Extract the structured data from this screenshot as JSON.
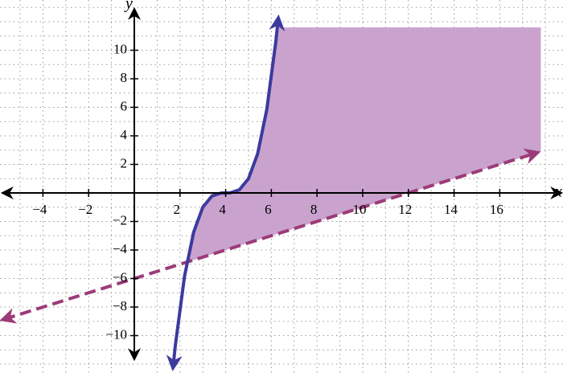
{
  "chart_data": {
    "type": "function-plot",
    "x_label": "x",
    "y_label": "y",
    "xlim": [
      -5.88,
      18.77
    ],
    "ylim": [
      -12.62,
      13.52
    ],
    "xticks": [
      {
        "value": -4,
        "label": "−4"
      },
      {
        "value": -2,
        "label": "−2"
      },
      2,
      4,
      6,
      8,
      10,
      12,
      14,
      16
    ],
    "yticks": [
      {
        "value": -10,
        "label": "−10"
      },
      {
        "value": -8,
        "label": "−8"
      },
      {
        "value": -6,
        "label": "−6"
      },
      {
        "value": -4,
        "label": "−4"
      },
      {
        "value": -2,
        "label": "−2"
      },
      2,
      4,
      6,
      8,
      10
    ],
    "xgrid": [
      -5,
      -4,
      -3,
      -2,
      -1,
      1,
      2,
      3,
      4,
      5,
      6,
      7,
      8,
      9,
      10,
      11,
      12,
      13,
      14,
      15,
      16,
      17,
      18
    ],
    "ygrid": [
      -12,
      -11,
      -10,
      -9,
      -8,
      -7,
      -6,
      -5,
      -4,
      -3,
      -2,
      -1,
      1,
      2,
      3,
      4,
      5,
      6,
      7,
      8,
      9,
      10,
      11,
      12,
      13
    ],
    "grid": true,
    "series": [
      {
        "kind": "region",
        "color": "#c9a3cd",
        "x": [
          2.3,
          17.8,
          17.8,
          6.264,
          6.2,
          5.8,
          5.4,
          5,
          4.6,
          4.2,
          4,
          3.8,
          3.4,
          3,
          2.6
        ],
        "values": [
          -4.85,
          2.9,
          11.6,
          11.6,
          10.648,
          5.832,
          2.744,
          1,
          0.216,
          0.008,
          0,
          -0.008,
          -0.216,
          -1,
          -2.744
        ]
      },
      {
        "kind": "dashed",
        "color": "#9c3b79",
        "x": [
          -5.7,
          17.6
        ],
        "values": [
          -8.85,
          2.8
        ]
      },
      {
        "kind": "solid",
        "color": "#3d3a9f",
        "x": [
          1.7,
          1.8,
          2.2,
          2.6,
          3,
          3.4,
          3.8,
          4,
          4.2,
          4.6,
          5,
          5.4,
          5.8,
          6.2,
          6.3
        ],
        "values": [
          -12.167,
          -10.648,
          -5.832,
          -2.744,
          -1,
          -0.216,
          -0.008,
          0,
          0.008,
          0.216,
          1,
          2.744,
          5.832,
          10.648,
          12.167
        ]
      }
    ]
  }
}
